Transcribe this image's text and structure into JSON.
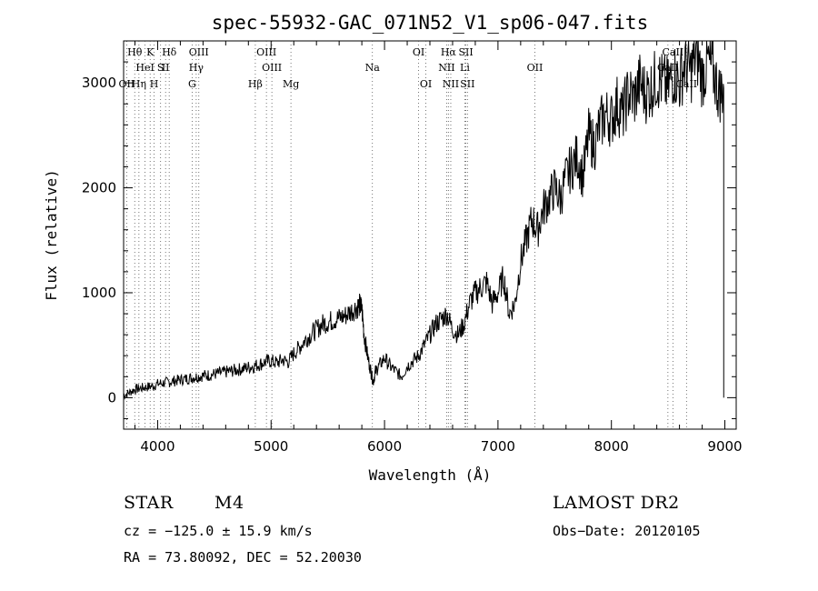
{
  "chart_data": {
    "type": "line",
    "title": "spec-55932-GAC_071N52_V1_sp06-047.fits",
    "xlabel": "Wavelength (Å)",
    "ylabel": "Flux (relative)",
    "xlim": [
      3700,
      9100
    ],
    "ylim": [
      -300,
      3400
    ],
    "x_ticks": [
      4000,
      5000,
      6000,
      7000,
      8000,
      9000
    ],
    "y_ticks": [
      0,
      1000,
      2000,
      3000
    ],
    "grid": false,
    "series": [
      {
        "x": [
          3700,
          3750,
          3800,
          3850,
          3900,
          3950,
          4000,
          4050,
          4100,
          4150,
          4200,
          4250,
          4300,
          4350,
          4400,
          4450,
          4500,
          4550,
          4600,
          4650,
          4700,
          4750,
          4800,
          4850,
          4900,
          4950,
          5000,
          5050,
          5100,
          5150,
          5200,
          5250,
          5300,
          5350,
          5400,
          5450,
          5500,
          5550,
          5600,
          5650,
          5700,
          5750,
          5780,
          5800,
          5820,
          5850,
          5880,
          5900,
          5920,
          5950,
          6000,
          6050,
          6100,
          6150,
          6200,
          6250,
          6300,
          6350,
          6400,
          6450,
          6500,
          6550,
          6600,
          6650,
          6700,
          6750,
          6800,
          6850,
          6900,
          6950,
          7000,
          7050,
          7100,
          7150,
          7200,
          7250,
          7300,
          7350,
          7400,
          7450,
          7500,
          7550,
          7600,
          7650,
          7700,
          7750,
          7800,
          7850,
          7900,
          7950,
          8000,
          8050,
          8100,
          8150,
          8200,
          8250,
          8300,
          8350,
          8400,
          8450,
          8500,
          8550,
          8600,
          8650,
          8700,
          8750,
          8800,
          8850,
          8900,
          8950,
          8990
        ],
        "y": [
          20,
          50,
          80,
          90,
          100,
          110,
          130,
          140,
          150,
          160,
          170,
          180,
          190,
          200,
          210,
          215,
          225,
          235,
          245,
          255,
          265,
          275,
          290,
          300,
          320,
          340,
          350,
          330,
          360,
          340,
          420,
          480,
          550,
          600,
          650,
          700,
          720,
          740,
          760,
          780,
          820,
          860,
          880,
          850,
          600,
          400,
          250,
          150,
          250,
          300,
          380,
          300,
          250,
          200,
          300,
          350,
          400,
          500,
          600,
          700,
          750,
          800,
          650,
          600,
          700,
          900,
          1000,
          1050,
          1100,
          900,
          1000,
          1150,
          800,
          900,
          1300,
          1500,
          1700,
          1600,
          1800,
          1900,
          2000,
          1900,
          2100,
          2200,
          2300,
          2100,
          2500,
          2400,
          2600,
          2700,
          2650,
          2800,
          2700,
          2900,
          2850,
          3000,
          2900,
          2950,
          3050,
          3000,
          2950,
          3100,
          3000,
          3200,
          3100,
          3300,
          3050,
          3200,
          3100,
          2900,
          2950
        ]
      }
    ],
    "line_ids": [
      {
        "label": "Hθ",
        "wave": 3798,
        "row": 0
      },
      {
        "label": "K",
        "wave": 3934,
        "row": 0
      },
      {
        "label": "Hδ",
        "wave": 4102,
        "row": 0
      },
      {
        "label": "OIII",
        "wave": 4363,
        "row": 0
      },
      {
        "label": "OIII",
        "wave": 4959,
        "row": 0
      },
      {
        "label": "OI",
        "wave": 6300,
        "row": 0
      },
      {
        "label": "Hα",
        "wave": 6563,
        "row": 0
      },
      {
        "label": "SII",
        "wave": 6717,
        "row": 0
      },
      {
        "label": "CaII",
        "wave": 8542,
        "row": 0
      },
      {
        "label": "HeI",
        "wave": 3889,
        "row": 1
      },
      {
        "label": "S",
        "wave": 4026,
        "row": 1
      },
      {
        "label": "II",
        "wave": 4070,
        "row": 1
      },
      {
        "label": "Hγ",
        "wave": 4340,
        "row": 1
      },
      {
        "label": "OIII",
        "wave": 5007,
        "row": 1
      },
      {
        "label": "Na",
        "wave": 5893,
        "row": 1
      },
      {
        "label": "NII",
        "wave": 6548,
        "row": 1
      },
      {
        "label": "Li",
        "wave": 6708,
        "row": 1
      },
      {
        "label": "OII",
        "wave": 7325,
        "row": 1
      },
      {
        "label": "CaII",
        "wave": 8498,
        "row": 1
      },
      {
        "label": "OII",
        "wave": 3727,
        "row": 2
      },
      {
        "label": "Hη",
        "wave": 3835,
        "row": 2
      },
      {
        "label": "H",
        "wave": 3969,
        "row": 2
      },
      {
        "label": "G",
        "wave": 4304,
        "row": 2
      },
      {
        "label": "Hβ",
        "wave": 4861,
        "row": 2
      },
      {
        "label": "Mg",
        "wave": 5175,
        "row": 2
      },
      {
        "label": "OI",
        "wave": 6364,
        "row": 2
      },
      {
        "label": "NII",
        "wave": 6584,
        "row": 2
      },
      {
        "label": "SII",
        "wave": 6731,
        "row": 2
      },
      {
        "label": "CaII",
        "wave": 8662,
        "row": 2
      }
    ]
  },
  "info": {
    "class": "STAR",
    "subclass": "M4",
    "survey": "LAMOST DR2",
    "cz": "cz = −125.0 ± 15.9 km/s",
    "obs_date": "Obs−Date: 20120105",
    "coords": "RA =  73.80092, DEC =  52.20030"
  }
}
